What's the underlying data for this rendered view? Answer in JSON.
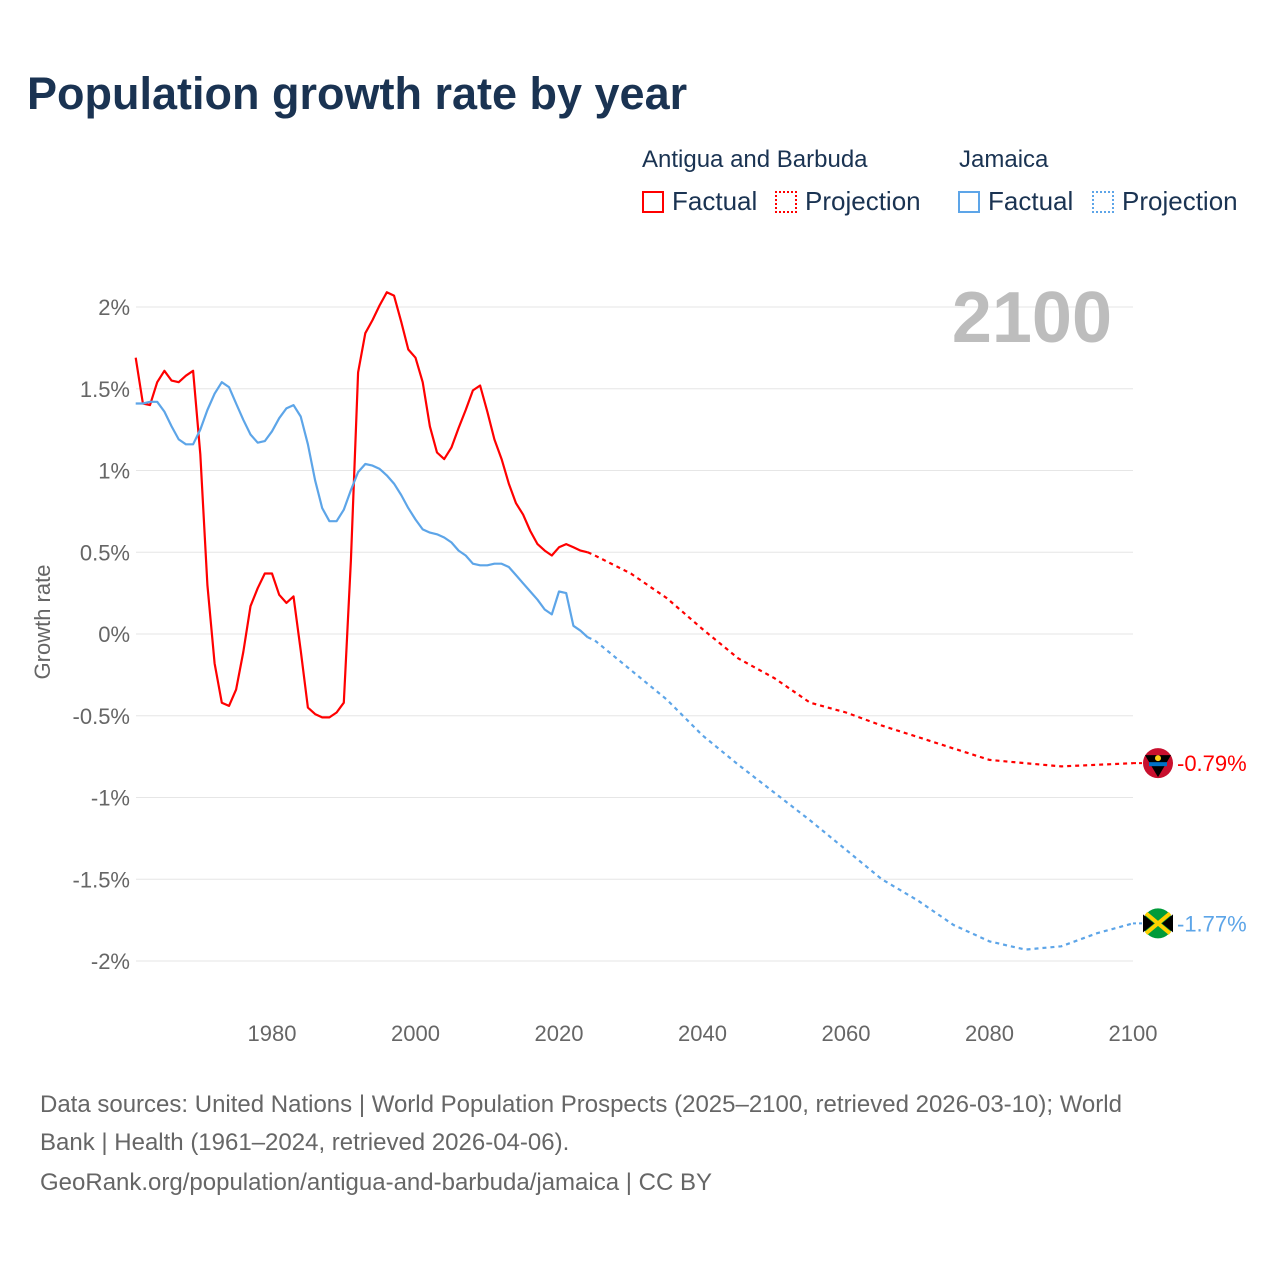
{
  "title": "Population growth rate by year",
  "legend": {
    "groups": [
      {
        "name": "Antigua and Barbuda",
        "factual": "Factual",
        "projection": "Projection",
        "color": "#ff0000"
      },
      {
        "name": "Jamaica",
        "factual": "Factual",
        "projection": "Projection",
        "color": "#5da5e8"
      }
    ]
  },
  "year_watermark": "2100",
  "footer": {
    "line1": "Data sources: United Nations | World Population Prospects (2025–2100, retrieved 2026-03-10); World",
    "line2": "Bank | Health (1961–2024, retrieved 2026-04-06).",
    "line3": "GeoRank.org/population/antigua-and-barbuda/jamaica | CC BY"
  },
  "chart_data": {
    "type": "line",
    "title": "Population growth rate by year",
    "xlabel": "",
    "ylabel": "Growth rate",
    "xlim": [
      1961,
      2100
    ],
    "ylim": [
      -2.25,
      2.2
    ],
    "x_ticks": [
      1980,
      2000,
      2020,
      2040,
      2060,
      2080,
      2100
    ],
    "x_tick_labels": [
      "1980",
      "2000",
      "2020",
      "2040",
      "2060",
      "2080",
      "2100"
    ],
    "y_ticks": [
      2,
      1.5,
      1,
      0.5,
      0,
      -0.5,
      -1,
      -1.5,
      -2
    ],
    "y_tick_labels": [
      "2%",
      "1.5%",
      "1%",
      "0.5%",
      "0%",
      "-0.5%",
      "-1%",
      "-1.5%",
      "-2%"
    ],
    "grid": true,
    "series": [
      {
        "name": "Antigua and Barbuda",
        "color": "#ff0000",
        "end_label": "-0.79%",
        "factual": {
          "x_start": 1961,
          "values": [
            1.69,
            1.41,
            1.4,
            1.54,
            1.61,
            1.55,
            1.54,
            1.58,
            1.61,
            1.1,
            0.3,
            -0.18,
            -0.42,
            -0.44,
            -0.34,
            -0.11,
            0.17,
            0.28,
            0.37,
            0.37,
            0.24,
            0.19,
            0.23,
            -0.1,
            -0.45,
            -0.49,
            -0.51,
            -0.51,
            -0.48,
            -0.42,
            0.45,
            1.6,
            1.84,
            1.92,
            2.01,
            2.09,
            2.07,
            1.91,
            1.74,
            1.69,
            1.54,
            1.27,
            1.11,
            1.07,
            1.14,
            1.26,
            1.37,
            1.49,
            1.52,
            1.36,
            1.19,
            1.07,
            0.92,
            0.8,
            0.73,
            0.63,
            0.55,
            0.51,
            0.48,
            0.53,
            0.55,
            0.53,
            0.51,
            0.5
          ]
        },
        "projection": {
          "x": [
            2024,
            2025,
            2030,
            2035,
            2040,
            2045,
            2050,
            2055,
            2060,
            2065,
            2070,
            2075,
            2080,
            2085,
            2090,
            2095,
            2100
          ],
          "values": [
            0.5,
            0.48,
            0.37,
            0.22,
            0.03,
            -0.15,
            -0.27,
            -0.42,
            -0.48,
            -0.56,
            -0.63,
            -0.7,
            -0.77,
            -0.79,
            -0.81,
            -0.8,
            -0.79
          ]
        }
      },
      {
        "name": "Jamaica",
        "color": "#5da5e8",
        "end_label": "-1.77%",
        "factual": {
          "x_start": 1961,
          "values": [
            1.41,
            1.41,
            1.42,
            1.42,
            1.36,
            1.27,
            1.19,
            1.16,
            1.16,
            1.25,
            1.37,
            1.47,
            1.54,
            1.51,
            1.41,
            1.31,
            1.22,
            1.17,
            1.18,
            1.24,
            1.32,
            1.38,
            1.4,
            1.33,
            1.16,
            0.94,
            0.77,
            0.69,
            0.69,
            0.76,
            0.88,
            0.99,
            1.04,
            1.03,
            1.01,
            0.97,
            0.92,
            0.85,
            0.77,
            0.7,
            0.64,
            0.62,
            0.61,
            0.59,
            0.56,
            0.51,
            0.48,
            0.43,
            0.42,
            0.42,
            0.43,
            0.43,
            0.41,
            0.36,
            0.31,
            0.26,
            0.21,
            0.15,
            0.12,
            0.26,
            0.25,
            0.05,
            0.02,
            -0.02
          ]
        },
        "projection": {
          "x": [
            2024,
            2025,
            2030,
            2035,
            2040,
            2045,
            2050,
            2055,
            2060,
            2065,
            2070,
            2075,
            2080,
            2085,
            2090,
            2095,
            2100
          ],
          "values": [
            -0.02,
            -0.04,
            -0.22,
            -0.4,
            -0.62,
            -0.8,
            -0.97,
            -1.14,
            -1.32,
            -1.5,
            -1.63,
            -1.78,
            -1.88,
            -1.93,
            -1.91,
            -1.83,
            -1.77
          ]
        }
      }
    ]
  }
}
